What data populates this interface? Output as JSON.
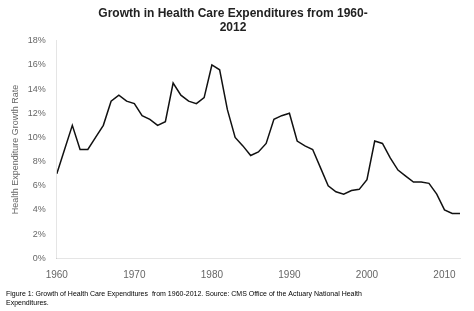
{
  "chart_data": {
    "type": "line",
    "title": "Growth in Health Care Expenditures from 1960-\n2012",
    "ylabel": "Health Expenditure Growth Rate",
    "caption": "Figure 1: Growth of Health Care Expenditures  from 1960-2012. Source: CMS Office of the Actuary National Health\nExpenditures.",
    "x": [
      1960,
      1961,
      1962,
      1963,
      1964,
      1965,
      1966,
      1967,
      1968,
      1969,
      1970,
      1971,
      1972,
      1973,
      1974,
      1975,
      1976,
      1977,
      1978,
      1979,
      1980,
      1981,
      1982,
      1983,
      1984,
      1985,
      1986,
      1987,
      1988,
      1989,
      1990,
      1991,
      1992,
      1993,
      1994,
      1995,
      1996,
      1997,
      1998,
      1999,
      2000,
      2001,
      2002,
      2003,
      2004,
      2005,
      2006,
      2007,
      2008,
      2009,
      2010,
      2011,
      2012
    ],
    "values": [
      0.07,
      0.09,
      0.11,
      0.09,
      0.09,
      0.1,
      0.11,
      0.13,
      0.135,
      0.13,
      0.128,
      0.118,
      0.115,
      0.11,
      0.113,
      0.145,
      0.135,
      0.13,
      0.128,
      0.133,
      0.16,
      0.156,
      0.123,
      0.1,
      0.093,
      0.085,
      0.088,
      0.095,
      0.115,
      0.118,
      0.12,
      0.097,
      0.093,
      0.09,
      0.075,
      0.06,
      0.055,
      0.053,
      0.056,
      0.057,
      0.065,
      0.097,
      0.095,
      0.083,
      0.073,
      0.068,
      0.063,
      0.063,
      0.062,
      0.053,
      0.04,
      0.037,
      0.037
    ],
    "color": "#111111",
    "xlim": [
      1960,
      2012
    ],
    "xticks": [
      1960,
      1970,
      1980,
      1990,
      2000,
      2010
    ],
    "ylim": [
      0,
      0.18
    ],
    "yticks": [
      {
        "value": 0.0,
        "label": "0%"
      },
      {
        "value": 0.02,
        "label": "2%"
      },
      {
        "value": 0.04,
        "label": "4%"
      },
      {
        "value": 0.06,
        "label": "6%"
      },
      {
        "value": 0.08,
        "label": "8%"
      },
      {
        "value": 0.1,
        "label": "10%"
      },
      {
        "value": 0.12,
        "label": "12%"
      },
      {
        "value": 0.14,
        "label": "14%"
      },
      {
        "value": 0.16,
        "label": "16%"
      },
      {
        "value": 0.18,
        "label": "18%"
      }
    ],
    "grid": false
  }
}
